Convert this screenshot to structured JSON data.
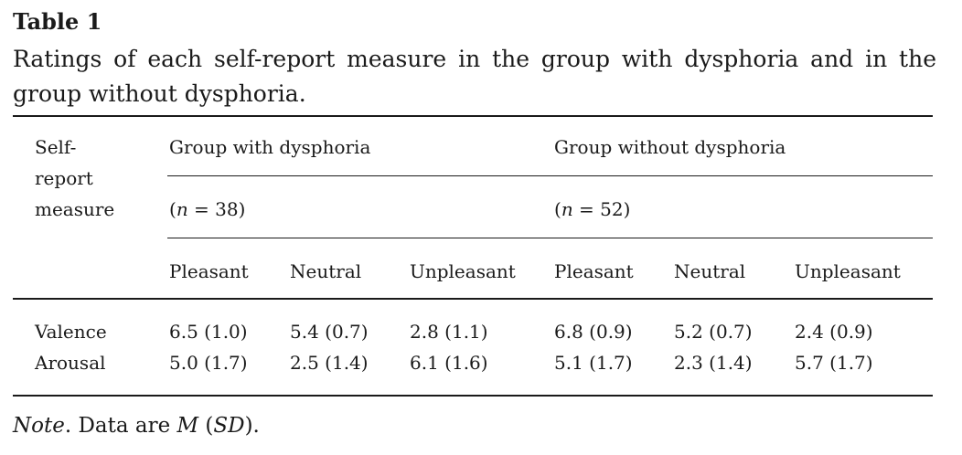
{
  "table": {
    "label": "Table 1",
    "caption": "Ratings of each self-report measure in the group with dysphoria and in the group without dysphoria.",
    "header": {
      "measure_col": [
        "Self-",
        "report",
        "measure"
      ],
      "group_with": "Group with dysphoria",
      "group_without": "Group without dysphoria",
      "n_with_prefix": "(",
      "n_with_var": "n",
      "n_with_rest": " = 38)",
      "n_without_prefix": "(",
      "n_without_var": "n",
      "n_without_rest": " = 52)",
      "conditions": [
        "Pleasant",
        "Neutral",
        "Unpleasant",
        "Pleasant",
        "Neutral",
        "Unpleasant"
      ]
    },
    "rows": [
      {
        "measure": "Valence",
        "values": [
          "6.5 (1.0)",
          "5.4 (0.7)",
          "2.8 (1.1)",
          "6.8 (0.9)",
          "5.2 (0.7)",
          "2.4 (0.9)"
        ]
      },
      {
        "measure": "Arousal",
        "values": [
          "5.0 (1.7)",
          "2.5 (1.4)",
          "6.1 (1.6)",
          "5.1 (1.7)",
          "2.3 (1.4)",
          "5.7 (1.7)"
        ]
      }
    ],
    "note": {
      "label": "Note",
      "text_1": ". Data are ",
      "m": "M",
      "text_2": " (",
      "sd": "SD",
      "text_3": ")."
    }
  }
}
